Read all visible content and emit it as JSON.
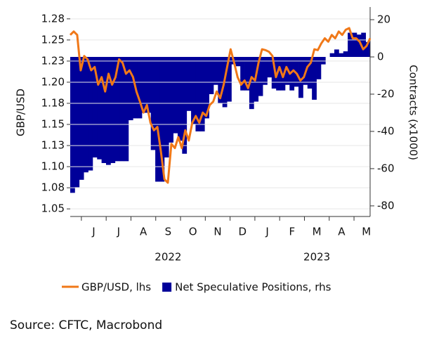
{
  "chart_data": {
    "type": "line_bar_dual",
    "source": "Source: CFTC, Macrobond",
    "ylabel": "GBP/USD",
    "y2label": "Contracts (x1000)",
    "x_labels": [
      "J",
      "J",
      "A",
      "S",
      "O",
      "N",
      "D",
      "J",
      "F",
      "M",
      "A",
      "M"
    ],
    "x_group_labels": [
      "2022",
      "2023"
    ],
    "ylim": [
      1.041,
      1.289
    ],
    "yticks": [
      1.05,
      {
        "value": 1.075,
        "label": "1.08"
      },
      {
        "value": 1.1,
        "label": "1.10"
      },
      {
        "value": 1.125,
        "label": "1.13"
      },
      1.15,
      {
        "value": 1.175,
        "label": "1.18"
      },
      {
        "value": 1.2,
        "label": "1.20"
      },
      {
        "value": 1.225,
        "label": "1.23"
      },
      1.25,
      {
        "value": 1.275,
        "label": "1.28"
      }
    ],
    "y2lim": [
      -85.7,
      26.8
    ],
    "y2ticks": [
      20,
      0,
      -20,
      -40,
      -60,
      -80
    ],
    "grid": true,
    "series": [
      {
        "name": "GBP/USD, lhs",
        "color": "#f07818",
        "kind": "line",
        "values": [
          1.256,
          1.26,
          1.256,
          1.214,
          1.231,
          1.227,
          1.214,
          1.218,
          1.197,
          1.206,
          1.189,
          1.21,
          1.197,
          1.206,
          1.227,
          1.223,
          1.21,
          1.214,
          1.206,
          1.189,
          1.177,
          1.164,
          1.173,
          1.152,
          1.143,
          1.147,
          1.118,
          1.085,
          1.081,
          1.127,
          1.122,
          1.135,
          1.122,
          1.143,
          1.131,
          1.152,
          1.16,
          1.152,
          1.164,
          1.16,
          1.173,
          1.177,
          1.189,
          1.181,
          1.197,
          1.218,
          1.239,
          1.223,
          1.206,
          1.197,
          1.202,
          1.193,
          1.206,
          1.202,
          1.223,
          1.239,
          1.238,
          1.236,
          1.231,
          1.206,
          1.218,
          1.206,
          1.218,
          1.21,
          1.214,
          1.21,
          1.202,
          1.206,
          1.218,
          1.223,
          1.239,
          1.238,
          1.246,
          1.252,
          1.248,
          1.256,
          1.252,
          1.26,
          1.256,
          1.262,
          1.264,
          1.252,
          1.252,
          1.248,
          1.239,
          1.243,
          1.252
        ]
      },
      {
        "name": "Net Speculative Positions, rhs",
        "color": "#000099",
        "kind": "bar",
        "axis": "y2",
        "values": [
          -73,
          -70,
          -66,
          -62,
          -61,
          -54,
          -55,
          -57,
          -58,
          -57,
          -56,
          -56,
          -56,
          -34,
          -33,
          -33,
          -30,
          -30,
          -50,
          -67,
          -67,
          -54,
          -46,
          -41,
          -45,
          -52,
          -29,
          -36,
          -40,
          -40,
          -33,
          -20,
          -15,
          -25,
          -27,
          -24,
          -4,
          -5,
          -18,
          -18,
          -28,
          -24,
          -21,
          -15,
          -11,
          -17,
          -18,
          -18,
          -15,
          -18,
          -16,
          -22,
          -15,
          -17,
          -23,
          -12,
          -4,
          0,
          2,
          4,
          2,
          3,
          13,
          13,
          12,
          13,
          8
        ]
      }
    ]
  }
}
